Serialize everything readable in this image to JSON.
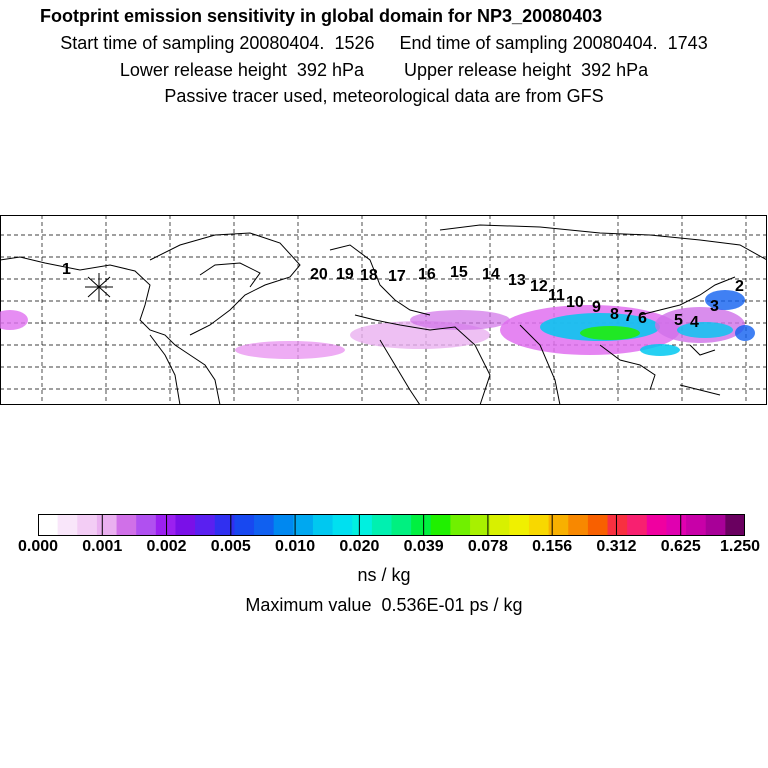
{
  "header": {
    "title": "Footprint emission sensitivity in global domain for NP3_20080403",
    "line1": "Start time of sampling 20080404.  1526     End time of sampling 20080404.  1743",
    "line2": "Lower release height  392 hPa        Upper release height  392 hPa",
    "line3": "Passive tracer used, meteorological data are from GFS"
  },
  "map": {
    "region": "global domain",
    "release_marker": "star-marker",
    "trajectory_labels": [
      "1",
      "2",
      "3",
      "4",
      "5",
      "6",
      "7",
      "8",
      "9",
      "10",
      "11",
      "12",
      "13",
      "14",
      "15",
      "16",
      "17",
      "18",
      "19",
      "20"
    ]
  },
  "colorbar": {
    "tick_labels": [
      "0.000",
      "0.001",
      "0.002",
      "0.005",
      "0.010",
      "0.020",
      "0.039",
      "0.078",
      "0.156",
      "0.312",
      "0.625",
      "1.250"
    ],
    "colors": [
      "#ffffff",
      "#f9e6fa",
      "#f3cdf5",
      "#eab0f0",
      "#d070e8",
      "#b050f0",
      "#9b20f0",
      "#7a10e8",
      "#5a20f0",
      "#3030f0",
      "#1848f0",
      "#1060f0",
      "#0088f0",
      "#00a8f0",
      "#00c8f0",
      "#00e0f0",
      "#00f0e0",
      "#00f0b0",
      "#00f080",
      "#00f040",
      "#20f000",
      "#70f000",
      "#a8f000",
      "#d8f000",
      "#f0f000",
      "#f8d800",
      "#f8b000",
      "#f88800",
      "#f86000",
      "#f83040",
      "#f82070",
      "#f000a0",
      "#e000b0",
      "#c800a8",
      "#a80098",
      "#6a0060"
    ],
    "units": "ns / kg",
    "max_value_text": "Maximum value  0.536E-01 ps / kg"
  }
}
